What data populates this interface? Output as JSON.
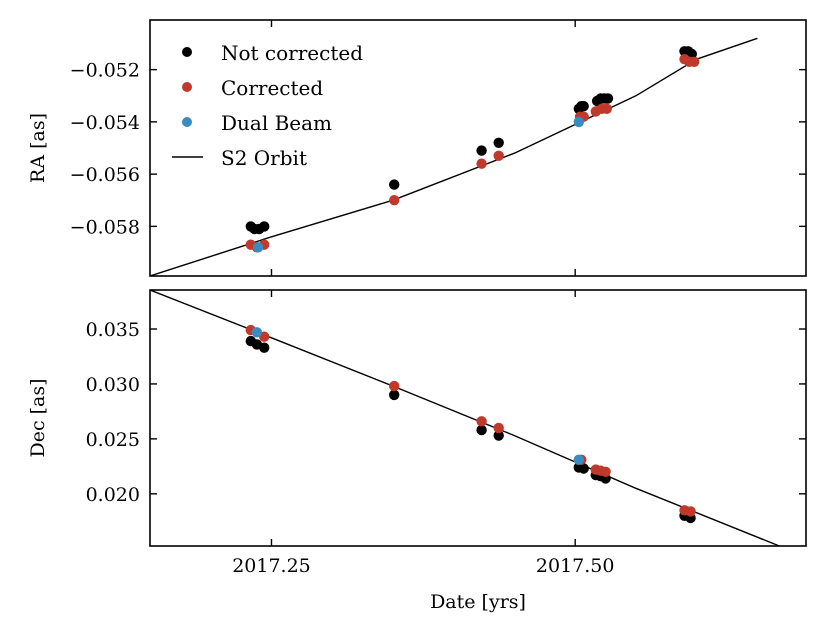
{
  "figure": {
    "xlabel": "Date [yrs]",
    "xlim": [
      2017.15,
      2017.69
    ],
    "xticks": [
      2017.25,
      2017.5
    ],
    "xtick_labels": [
      "2017.25",
      "2017.50"
    ]
  },
  "colors": {
    "not_corrected": "#000000",
    "corrected": "#c0392b",
    "dual_beam": "#3a8bbf",
    "orbit": "#000000"
  },
  "legend": {
    "entries": [
      {
        "label": "Not corrected",
        "kind": "marker",
        "color": "#000000"
      },
      {
        "label": "Corrected",
        "kind": "marker",
        "color": "#c0392b"
      },
      {
        "label": "Dual Beam",
        "kind": "marker",
        "color": "#3a8bbf"
      },
      {
        "label": "S2 Orbit",
        "kind": "line",
        "color": "#000000"
      }
    ]
  },
  "chart_data": [
    {
      "type": "scatter",
      "name": "ra_panel",
      "ylabel": "RA [as]",
      "ylim": [
        -0.0599,
        -0.0501
      ],
      "yticks": [
        -0.058,
        -0.056,
        -0.054,
        -0.052
      ],
      "ytick_labels": [
        "−0.058",
        "−0.056",
        "−0.054",
        "−0.052"
      ],
      "series": [
        {
          "name": "Not corrected",
          "color": "#000000",
          "points": [
            [
              2017.233,
              -0.058
            ],
            [
              2017.236,
              -0.0581
            ],
            [
              2017.24,
              -0.0581
            ],
            [
              2017.244,
              -0.058
            ],
            [
              2017.351,
              -0.0564
            ],
            [
              2017.423,
              -0.0551
            ],
            [
              2017.437,
              -0.0548
            ],
            [
              2017.503,
              -0.0535
            ],
            [
              2017.505,
              -0.0534
            ],
            [
              2017.507,
              -0.0534
            ],
            [
              2017.518,
              -0.0532
            ],
            [
              2017.521,
              -0.0531
            ],
            [
              2017.524,
              -0.0531
            ],
            [
              2017.527,
              -0.0531
            ],
            [
              2017.59,
              -0.0513
            ],
            [
              2017.593,
              -0.0513
            ],
            [
              2017.596,
              -0.0514
            ]
          ]
        },
        {
          "name": "Corrected",
          "color": "#c0392b",
          "points": [
            [
              2017.233,
              -0.0587
            ],
            [
              2017.238,
              -0.0588
            ],
            [
              2017.244,
              -0.0587
            ],
            [
              2017.351,
              -0.057
            ],
            [
              2017.423,
              -0.0556
            ],
            [
              2017.437,
              -0.0553
            ],
            [
              2017.504,
              -0.0538
            ],
            [
              2017.507,
              -0.0538
            ],
            [
              2017.517,
              -0.0536
            ],
            [
              2017.522,
              -0.0535
            ],
            [
              2017.526,
              -0.0535
            ],
            [
              2017.59,
              -0.0516
            ],
            [
              2017.594,
              -0.0517
            ],
            [
              2017.598,
              -0.0517
            ]
          ]
        },
        {
          "name": "Dual Beam",
          "color": "#3a8bbf",
          "points": [
            [
              2017.239,
              -0.0588
            ],
            [
              2017.503,
              -0.054
            ]
          ]
        },
        {
          "name": "S2 Orbit",
          "type": "line",
          "color": "#000000",
          "points": [
            [
              2017.15,
              -0.0599
            ],
            [
              2017.25,
              -0.0584
            ],
            [
              2017.35,
              -0.057
            ],
            [
              2017.45,
              -0.0552
            ],
            [
              2017.55,
              -0.053
            ],
            [
              2017.6,
              -0.0516
            ],
            [
              2017.65,
              -0.0508
            ]
          ]
        }
      ]
    },
    {
      "type": "scatter",
      "name": "dec_panel",
      "ylabel": "Dec [as]",
      "ylim": [
        0.01525,
        0.03855
      ],
      "yticks": [
        0.02,
        0.025,
        0.03,
        0.035
      ],
      "ytick_labels": [
        "0.020",
        "0.025",
        "0.030",
        "0.035"
      ],
      "series": [
        {
          "name": "Not corrected",
          "color": "#000000",
          "points": [
            [
              2017.233,
              0.0339
            ],
            [
              2017.238,
              0.0336
            ],
            [
              2017.244,
              0.0333
            ],
            [
              2017.351,
              0.029
            ],
            [
              2017.423,
              0.0258
            ],
            [
              2017.437,
              0.0253
            ],
            [
              2017.503,
              0.0224
            ],
            [
              2017.507,
              0.0223
            ],
            [
              2017.517,
              0.0217
            ],
            [
              2017.521,
              0.0216
            ],
            [
              2017.525,
              0.0214
            ],
            [
              2017.59,
              0.018
            ],
            [
              2017.595,
              0.0178
            ]
          ]
        },
        {
          "name": "Corrected",
          "color": "#c0392b",
          "points": [
            [
              2017.233,
              0.0349
            ],
            [
              2017.244,
              0.0343
            ],
            [
              2017.351,
              0.0298
            ],
            [
              2017.423,
              0.0266
            ],
            [
              2017.437,
              0.026
            ],
            [
              2017.505,
              0.0231
            ],
            [
              2017.517,
              0.0222
            ],
            [
              2017.521,
              0.0221
            ],
            [
              2017.525,
              0.022
            ],
            [
              2017.59,
              0.0185
            ],
            [
              2017.595,
              0.0184
            ]
          ]
        },
        {
          "name": "Dual Beam",
          "color": "#3a8bbf",
          "points": [
            [
              2017.238,
              0.0347
            ],
            [
              2017.503,
              0.0231
            ]
          ]
        },
        {
          "name": "S2 Orbit",
          "type": "line",
          "color": "#000000",
          "points": [
            [
              2017.15,
              0.03855
            ],
            [
              2017.25,
              0.0342
            ],
            [
              2017.35,
              0.0298
            ],
            [
              2017.45,
              0.0253
            ],
            [
              2017.55,
              0.0205
            ],
            [
              2017.668,
              0.01525
            ]
          ]
        }
      ]
    }
  ]
}
